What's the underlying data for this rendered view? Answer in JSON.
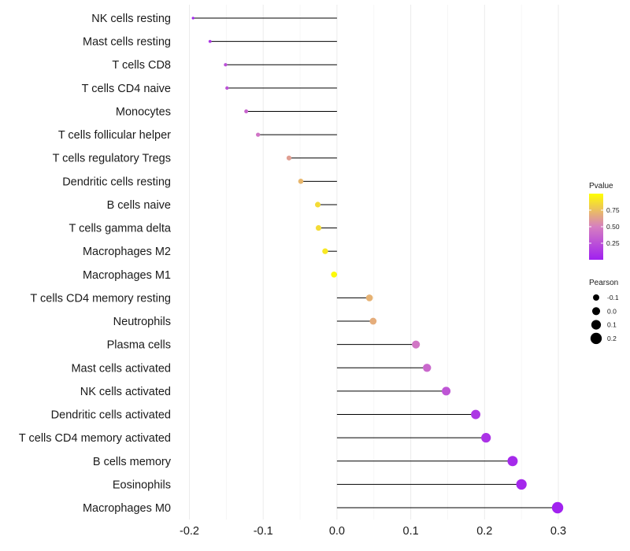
{
  "chart_data": {
    "type": "lollipop",
    "title": "",
    "xlabel": "",
    "ylabel": "",
    "xlim": [
      -0.2,
      0.3
    ],
    "xticks": [
      -0.2,
      -0.1,
      0.0,
      0.1,
      0.2,
      0.3
    ],
    "xtick_labels": [
      "-0.2",
      "-0.1",
      "0.0",
      "0.1",
      "0.2",
      "0.3"
    ],
    "grid": true,
    "series": [
      {
        "category": "NK cells resting",
        "pearson": -0.195,
        "pvalue": 0.02
      },
      {
        "category": "Mast cells resting",
        "pearson": -0.172,
        "pvalue": 0.12
      },
      {
        "category": "T cells CD8",
        "pearson": -0.151,
        "pvalue": 0.25
      },
      {
        "category": "T cells CD4 naive",
        "pearson": -0.149,
        "pvalue": 0.26
      },
      {
        "category": "Monocytes",
        "pearson": -0.123,
        "pvalue": 0.36
      },
      {
        "category": "T cells follicular helper",
        "pearson": -0.107,
        "pvalue": 0.44
      },
      {
        "category": "T cells regulatory  Tregs",
        "pearson": -0.065,
        "pvalue": 0.62
      },
      {
        "category": "Dendritic cells resting",
        "pearson": -0.049,
        "pvalue": 0.72
      },
      {
        "category": "B cells naive",
        "pearson": -0.026,
        "pvalue": 0.86
      },
      {
        "category": "T cells gamma delta",
        "pearson": -0.025,
        "pvalue": 0.86
      },
      {
        "category": "Macrophages M2",
        "pearson": -0.016,
        "pvalue": 0.91
      },
      {
        "category": "Macrophages M1",
        "pearson": -0.004,
        "pvalue": 0.98
      },
      {
        "category": "T cells CD4 memory resting",
        "pearson": 0.044,
        "pvalue": 0.7
      },
      {
        "category": "Neutrophils",
        "pearson": 0.049,
        "pvalue": 0.68
      },
      {
        "category": "Plasma cells",
        "pearson": 0.107,
        "pvalue": 0.45
      },
      {
        "category": "Mast cells activated",
        "pearson": 0.122,
        "pvalue": 0.38
      },
      {
        "category": "NK cells activated",
        "pearson": 0.148,
        "pvalue": 0.28
      },
      {
        "category": "Dendritic cells activated",
        "pearson": 0.188,
        "pvalue": 0.12
      },
      {
        "category": "T cells CD4 memory activated",
        "pearson": 0.202,
        "pvalue": 0.1
      },
      {
        "category": "B cells memory",
        "pearson": 0.238,
        "pvalue": 0.05
      },
      {
        "category": "Eosinophils",
        "pearson": 0.25,
        "pvalue": 0.04
      },
      {
        "category": "Macrophages M0",
        "pearson": 0.299,
        "pvalue": 0.01
      }
    ],
    "legend_color": {
      "title": "Pvalue",
      "ticks": [
        0.25,
        0.5,
        0.75
      ],
      "tick_labels": [
        "0.25",
        "0.50",
        "0.75"
      ],
      "range": [
        0.0,
        1.0
      ],
      "low_color": "#a020f0",
      "mid_color": "#d67fc0",
      "high_color": "#ffff00",
      "position": "right"
    },
    "legend_size": {
      "title": "Pearson",
      "values": [
        -0.1,
        0.0,
        0.1,
        0.2
      ],
      "labels": [
        "-0.1",
        "0.0",
        "0.1",
        "0.2"
      ],
      "position": "right"
    },
    "colors": {
      "stem": "#000000",
      "grid": "#ebebeb",
      "background": "#ffffff"
    }
  }
}
